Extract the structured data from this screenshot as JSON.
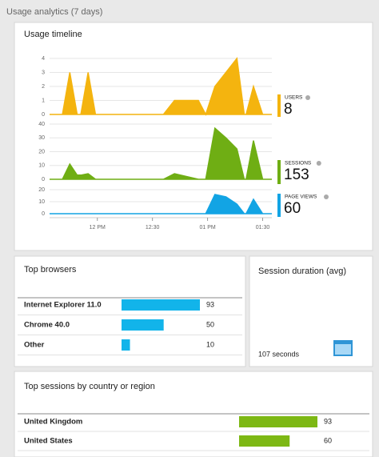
{
  "title": "Usage analytics (7 days)",
  "timeline": {
    "title": "Usage timeline",
    "x": [
      694,
      701,
      705,
      709,
      711,
      715,
      719,
      756,
      762,
      775,
      779,
      784,
      790,
      796,
      800,
      801,
      805,
      810,
      815
    ],
    "xlim": [
      694,
      815
    ],
    "xticks": [
      {
        "value": 720,
        "label": "12 PM"
      },
      {
        "value": 750,
        "label": "12:30"
      },
      {
        "value": 780,
        "label": "01 PM"
      },
      {
        "value": 810,
        "label": "01:30"
      }
    ],
    "charts": [
      {
        "type": "area",
        "name": "USERS",
        "total": 8,
        "color": "#f4b40f",
        "values": [
          0,
          0,
          3,
          0,
          0,
          3,
          0,
          0,
          1,
          1,
          0,
          2,
          3,
          4,
          0,
          0,
          2,
          0,
          0
        ],
        "ylim": [
          0,
          4
        ],
        "yticks": [
          0,
          1,
          2,
          3,
          4
        ]
      },
      {
        "type": "area",
        "name": "SESSIONS",
        "total": 153,
        "color": "#6fae14",
        "values": [
          0,
          0,
          11,
          3,
          3,
          4,
          0,
          0,
          4,
          0,
          0,
          37,
          30,
          22,
          0,
          0,
          28,
          0,
          0
        ],
        "ylim": [
          0,
          40
        ],
        "yticks": [
          0,
          10,
          20,
          30,
          40
        ]
      },
      {
        "type": "area",
        "name": "PAGE VIEWS",
        "total": 60,
        "color": "#12a4e4",
        "values": [
          0,
          0,
          0,
          0,
          0,
          0,
          0,
          0,
          0,
          0,
          0,
          16,
          14,
          8,
          0,
          0,
          12,
          0,
          0
        ],
        "ylim": [
          0,
          20
        ],
        "yticks": [
          0,
          10,
          20
        ]
      }
    ]
  },
  "browsers": {
    "title": "Top browsers",
    "color": "#12b4ea",
    "rows": [
      {
        "name": "Internet Explorer 11.0",
        "value": 93
      },
      {
        "name": "Chrome 40.0",
        "value": 50
      },
      {
        "name": "Other",
        "value": 10
      }
    ]
  },
  "duration": {
    "title": "Session duration (avg)",
    "label": "107 seconds"
  },
  "countries": {
    "title": "Top sessions by country or region",
    "color": "#7db814",
    "rows": [
      {
        "name": "United Kingdom",
        "value": 93
      },
      {
        "name": "United States",
        "value": 60
      }
    ]
  }
}
